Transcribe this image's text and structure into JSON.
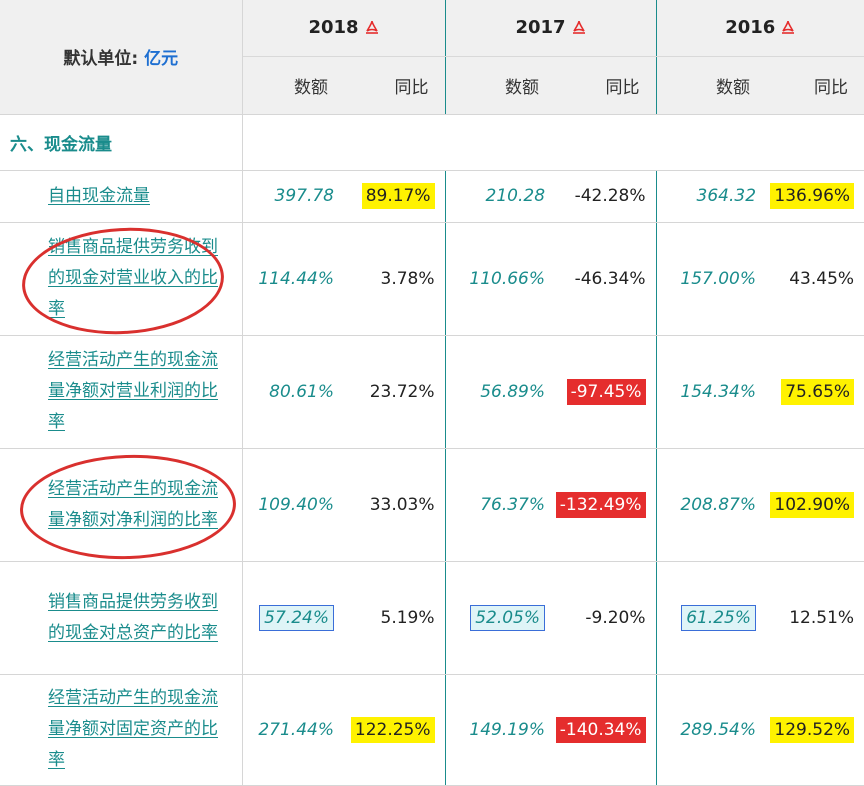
{
  "header": {
    "unit_prefix": "默认单位: ",
    "unit_value": "亿元",
    "years": [
      "2018",
      "2017",
      "2016"
    ],
    "col_amount": "数额",
    "col_yoy": "同比"
  },
  "section_title": "六、现金流量",
  "rows": [
    {
      "label": "自由现金流量",
      "v2018": "397.78",
      "y2018": "89.17%",
      "v2017": "210.28",
      "y2017": "-42.28%",
      "v2016": "364.32",
      "y2016": "136.96%"
    },
    {
      "label": "销售商品提供劳务收到的现金对营业收入的比率",
      "v2018": "114.44%",
      "y2018": "3.78%",
      "v2017": "110.66%",
      "y2017": "-46.34%",
      "v2016": "157.00%",
      "y2016": "43.45%"
    },
    {
      "label": "经营活动产生的现金流量净额对营业利润的比率",
      "v2018": "80.61%",
      "y2018": "23.72%",
      "v2017": "56.89%",
      "y2017": "-97.45%",
      "v2016": "154.34%",
      "y2016": "75.65%"
    },
    {
      "label": "经营活动产生的现金流量净额对净利润的比率",
      "v2018": "109.40%",
      "y2018": "33.03%",
      "v2017": "76.37%",
      "y2017": "-132.49%",
      "v2016": "208.87%",
      "y2016": "102.90%"
    },
    {
      "label": "销售商品提供劳务收到的现金对总资产的比率",
      "v2018": "57.24%",
      "y2018": "5.19%",
      "v2017": "52.05%",
      "y2017": "-9.20%",
      "v2016": "61.25%",
      "y2016": "12.51%"
    },
    {
      "label": "经营活动产生的现金流量净额对固定资产的比率",
      "v2018": "271.44%",
      "y2018": "122.25%",
      "v2017": "149.19%",
      "y2017": "-140.34%",
      "v2016": "289.54%",
      "y2016": "129.52%"
    }
  ],
  "colors": {
    "teal": "#1a8c8c",
    "highlight_yellow": "#fff200",
    "highlight_red": "#e52d2d",
    "unit_blue": "#1e6fd1",
    "annotation_red": "#d9302e"
  }
}
